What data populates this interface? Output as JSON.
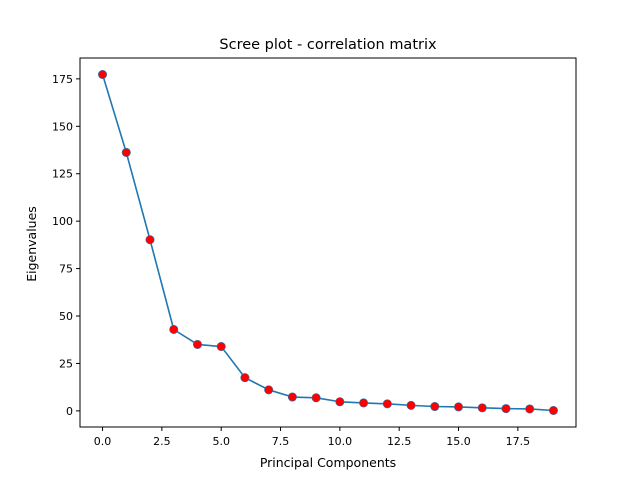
{
  "chart_data": {
    "type": "line",
    "title": "Scree plot - correlation matrix",
    "xlabel": "Principal Components",
    "ylabel": "Eigenvalues",
    "xlim": [
      -0.95,
      19.95
    ],
    "ylim": [
      -8.5,
      186
    ],
    "x_ticks": [
      0.0,
      2.5,
      5.0,
      7.5,
      10.0,
      12.5,
      15.0,
      17.5
    ],
    "x_tick_labels": [
      "0.0",
      "2.5",
      "5.0",
      "7.5",
      "10.0",
      "12.5",
      "15.0",
      "17.5"
    ],
    "y_ticks": [
      0,
      25,
      50,
      75,
      100,
      125,
      150,
      175
    ],
    "y_tick_labels": [
      "0",
      "25",
      "50",
      "75",
      "100",
      "125",
      "150",
      "175"
    ],
    "grid": false,
    "series": [
      {
        "x": [
          0,
          1,
          2,
          3,
          4,
          5,
          6,
          7,
          8,
          9,
          10,
          11,
          12,
          13,
          14,
          15,
          16,
          17,
          18,
          19
        ],
        "values": [
          177.3,
          136.2,
          90.2,
          42.9,
          35.0,
          33.9,
          17.5,
          11.1,
          7.3,
          6.9,
          4.8,
          4.2,
          3.7,
          2.9,
          2.3,
          2.1,
          1.6,
          1.2,
          1.0,
          0.2
        ],
        "line_color": "#1f77b4",
        "marker_color": "#ff0000"
      }
    ]
  }
}
